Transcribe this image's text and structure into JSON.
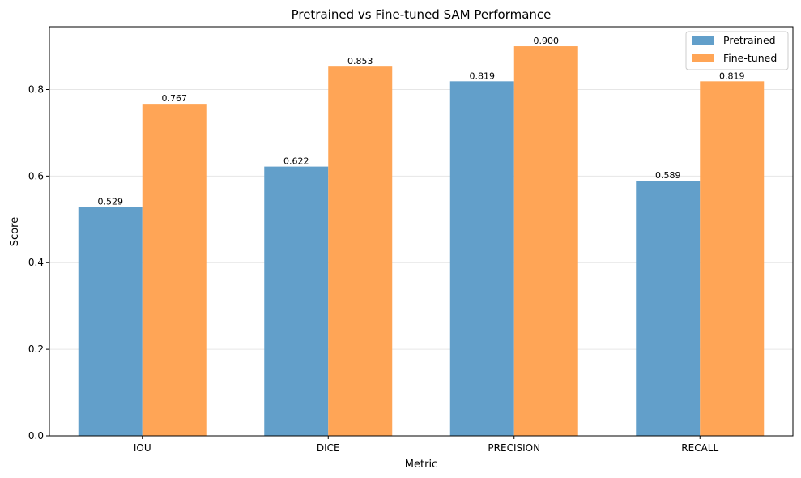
{
  "chart_data": {
    "type": "bar",
    "title": "Pretrained vs Fine-tuned SAM Performance",
    "xlabel": "Metric",
    "ylabel": "Score",
    "categories": [
      "IOU",
      "DICE",
      "PRECISION",
      "RECALL"
    ],
    "series": [
      {
        "name": "Pretrained",
        "color": "#629fca",
        "values": [
          0.529,
          0.622,
          0.819,
          0.589
        ],
        "labels": [
          "0.529",
          "0.622",
          "0.819",
          "0.589"
        ]
      },
      {
        "name": "Fine-tuned",
        "color": "#ffa556",
        "values": [
          0.767,
          0.853,
          0.9,
          0.819
        ],
        "labels": [
          "0.767",
          "0.853",
          "0.900",
          "0.819"
        ]
      }
    ],
    "ylim": [
      0,
      0.945
    ],
    "yticks": [
      0.0,
      0.2,
      0.4,
      0.6,
      0.8
    ],
    "ytick_labels": [
      "0.0",
      "0.2",
      "0.4",
      "0.6",
      "0.8"
    ],
    "grid": "y",
    "legend_position": "top-right"
  }
}
